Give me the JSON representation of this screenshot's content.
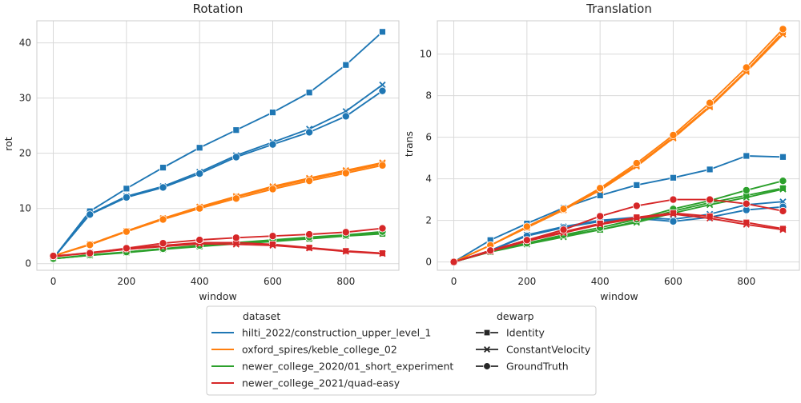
{
  "chart_data": [
    {
      "type": "line",
      "title": "Rotation",
      "xlabel": "window",
      "ylabel": "rot",
      "xlim": [
        -45,
        945
      ],
      "ylim": [
        -1.2,
        44
      ],
      "xticks": [
        0,
        200,
        400,
        600,
        800
      ],
      "yticks": [
        0,
        10,
        20,
        30,
        40
      ],
      "grid": true,
      "series": [
        {
          "dataset": "hilti_2022/construction_upper_level_1",
          "dewarp": "Identity",
          "color": "#1f77b4",
          "marker": "square",
          "x": [
            0,
            100,
            200,
            300,
            400,
            500,
            600,
            700,
            800,
            900
          ],
          "y": [
            1.0,
            9.5,
            13.6,
            17.4,
            21.0,
            24.2,
            27.4,
            31.0,
            36.0,
            42.0
          ]
        },
        {
          "dataset": "hilti_2022/construction_upper_level_1",
          "dewarp": "ConstantVelocity",
          "color": "#1f77b4",
          "marker": "x",
          "x": [
            0,
            100,
            200,
            300,
            400,
            500,
            600,
            700,
            800,
            900
          ],
          "y": [
            1.0,
            9.0,
            12.2,
            14.0,
            16.6,
            19.6,
            22.0,
            24.4,
            27.6,
            32.4
          ]
        },
        {
          "dataset": "hilti_2022/construction_upper_level_1",
          "dewarp": "GroundTruth",
          "color": "#1f77b4",
          "marker": "circle",
          "x": [
            0,
            100,
            200,
            300,
            400,
            500,
            600,
            700,
            800,
            900
          ],
          "y": [
            1.0,
            8.9,
            12.0,
            13.8,
            16.3,
            19.3,
            21.6,
            23.8,
            26.7,
            31.3
          ]
        },
        {
          "dataset": "oxford_spires/keble_college_02",
          "dewarp": "Identity",
          "color": "#ff7f0e",
          "marker": "square",
          "x": [
            0,
            100,
            200,
            300,
            400,
            500,
            600,
            700,
            800,
            900
          ],
          "y": [
            1.4,
            3.5,
            5.9,
            8.2,
            10.2,
            12.1,
            13.8,
            15.3,
            16.7,
            18.1
          ]
        },
        {
          "dataset": "oxford_spires/keble_college_02",
          "dewarp": "ConstantVelocity",
          "color": "#ff7f0e",
          "marker": "x",
          "x": [
            0,
            100,
            200,
            300,
            400,
            500,
            600,
            700,
            800,
            900
          ],
          "y": [
            1.4,
            3.5,
            5.9,
            8.2,
            10.3,
            12.2,
            14.0,
            15.5,
            16.9,
            18.3
          ]
        },
        {
          "dataset": "oxford_spires/keble_college_02",
          "dewarp": "GroundTruth",
          "color": "#ff7f0e",
          "marker": "circle",
          "x": [
            0,
            100,
            200,
            300,
            400,
            500,
            600,
            700,
            800,
            900
          ],
          "y": [
            1.4,
            3.4,
            5.8,
            8.0,
            10.0,
            11.8,
            13.5,
            15.0,
            16.4,
            17.8
          ]
        },
        {
          "dataset": "newer_college_2020/01_short_experiment",
          "dewarp": "Identity",
          "color": "#2ca02c",
          "marker": "square",
          "x": [
            0,
            100,
            200,
            300,
            400,
            500,
            600,
            700,
            800,
            900
          ],
          "y": [
            0.9,
            1.5,
            2.0,
            2.6,
            3.1,
            3.6,
            4.0,
            4.5,
            5.0,
            5.4
          ]
        },
        {
          "dataset": "newer_college_2020/01_short_experiment",
          "dewarp": "ConstantVelocity",
          "color": "#2ca02c",
          "marker": "x",
          "x": [
            0,
            100,
            200,
            300,
            400,
            500,
            600,
            700,
            800,
            900
          ],
          "y": [
            0.9,
            1.5,
            2.1,
            2.7,
            3.2,
            3.7,
            4.1,
            4.6,
            5.1,
            5.6
          ]
        },
        {
          "dataset": "newer_college_2020/01_short_experiment",
          "dewarp": "GroundTruth",
          "color": "#2ca02c",
          "marker": "circle",
          "x": [
            0,
            100,
            200,
            300,
            400,
            500,
            600,
            700,
            800,
            900
          ],
          "y": [
            0.9,
            1.6,
            2.1,
            2.7,
            3.3,
            3.8,
            4.3,
            4.8,
            5.2,
            5.8
          ]
        },
        {
          "dataset": "newer_college_2021/quad-easy",
          "dewarp": "Identity",
          "color": "#d62728",
          "marker": "square",
          "x": [
            0,
            100,
            200,
            300,
            400,
            500,
            600,
            700,
            800,
            900
          ],
          "y": [
            1.3,
            2.0,
            2.7,
            3.3,
            3.8,
            3.8,
            3.5,
            2.9,
            2.3,
            1.9
          ]
        },
        {
          "dataset": "newer_college_2021/quad-easy",
          "dewarp": "ConstantVelocity",
          "color": "#d62728",
          "marker": "x",
          "x": [
            0,
            100,
            200,
            300,
            400,
            500,
            600,
            700,
            800,
            900
          ],
          "y": [
            1.3,
            1.9,
            2.6,
            3.1,
            3.6,
            3.5,
            3.3,
            2.8,
            2.2,
            1.8
          ]
        },
        {
          "dataset": "newer_college_2021/quad-easy",
          "dewarp": "GroundTruth",
          "color": "#d62728",
          "marker": "circle",
          "x": [
            0,
            100,
            200,
            300,
            400,
            500,
            600,
            700,
            800,
            900
          ],
          "y": [
            1.4,
            1.9,
            2.8,
            3.7,
            4.3,
            4.7,
            5.0,
            5.3,
            5.7,
            6.4
          ]
        }
      ]
    },
    {
      "type": "line",
      "title": "Translation",
      "xlabel": "window",
      "ylabel": "trans",
      "xlim": [
        -45,
        945
      ],
      "ylim": [
        -0.4,
        11.6
      ],
      "xticks": [
        0,
        200,
        400,
        600,
        800
      ],
      "yticks": [
        0,
        2,
        4,
        6,
        8,
        10
      ],
      "grid": true,
      "series": [
        {
          "dataset": "hilti_2022/construction_upper_level_1",
          "dewarp": "Identity",
          "color": "#1f77b4",
          "marker": "square",
          "x": [
            0,
            100,
            200,
            300,
            400,
            500,
            600,
            700,
            800,
            900
          ],
          "y": [
            0,
            1.05,
            1.85,
            2.6,
            3.2,
            3.7,
            4.05,
            4.45,
            5.1,
            5.05
          ]
        },
        {
          "dataset": "hilti_2022/construction_upper_level_1",
          "dewarp": "ConstantVelocity",
          "color": "#1f77b4",
          "marker": "x",
          "x": [
            0,
            100,
            200,
            300,
            400,
            500,
            600,
            700,
            800,
            900
          ],
          "y": [
            0,
            0.55,
            1.3,
            1.7,
            2.0,
            2.15,
            2.05,
            2.3,
            2.75,
            2.9
          ]
        },
        {
          "dataset": "hilti_2022/construction_upper_level_1",
          "dewarp": "GroundTruth",
          "color": "#1f77b4",
          "marker": "circle",
          "x": [
            0,
            100,
            200,
            300,
            400,
            500,
            600,
            700,
            800,
            900
          ],
          "y": [
            0,
            0.55,
            1.25,
            1.65,
            1.95,
            2.1,
            1.95,
            2.15,
            2.5,
            2.65
          ]
        },
        {
          "dataset": "oxford_spires/keble_college_02",
          "dewarp": "Identity",
          "color": "#ff7f0e",
          "marker": "square",
          "x": [
            0,
            100,
            200,
            300,
            400,
            500,
            600,
            700,
            800,
            900
          ],
          "y": [
            0,
            0.8,
            1.65,
            2.5,
            3.5,
            4.65,
            6.0,
            7.5,
            9.2,
            11.05
          ]
        },
        {
          "dataset": "oxford_spires/keble_college_02",
          "dewarp": "ConstantVelocity",
          "color": "#ff7f0e",
          "marker": "x",
          "x": [
            0,
            100,
            200,
            300,
            400,
            500,
            600,
            700,
            800,
            900
          ],
          "y": [
            0,
            0.8,
            1.65,
            2.5,
            3.45,
            4.6,
            5.95,
            7.45,
            9.15,
            10.95
          ]
        },
        {
          "dataset": "oxford_spires/keble_college_02",
          "dewarp": "GroundTruth",
          "color": "#ff7f0e",
          "marker": "circle",
          "x": [
            0,
            100,
            200,
            300,
            400,
            500,
            600,
            700,
            800,
            900
          ],
          "y": [
            0,
            0.8,
            1.7,
            2.55,
            3.55,
            4.75,
            6.1,
            7.65,
            9.35,
            11.2
          ]
        },
        {
          "dataset": "newer_college_2020/01_short_experiment",
          "dewarp": "Identity",
          "color": "#2ca02c",
          "marker": "square",
          "x": [
            0,
            100,
            200,
            300,
            400,
            500,
            600,
            700,
            800,
            900
          ],
          "y": [
            0,
            0.5,
            0.9,
            1.25,
            1.55,
            1.95,
            2.45,
            2.85,
            3.2,
            3.55
          ]
        },
        {
          "dataset": "newer_college_2020/01_short_experiment",
          "dewarp": "ConstantVelocity",
          "color": "#2ca02c",
          "marker": "x",
          "x": [
            0,
            100,
            200,
            300,
            400,
            500,
            600,
            700,
            800,
            900
          ],
          "y": [
            0,
            0.48,
            0.85,
            1.2,
            1.55,
            1.9,
            2.35,
            2.75,
            3.1,
            3.5
          ]
        },
        {
          "dataset": "newer_college_2020/01_short_experiment",
          "dewarp": "GroundTruth",
          "color": "#2ca02c",
          "marker": "circle",
          "x": [
            0,
            100,
            200,
            300,
            400,
            500,
            600,
            700,
            800,
            900
          ],
          "y": [
            0,
            0.5,
            0.9,
            1.3,
            1.65,
            2.05,
            2.55,
            2.95,
            3.45,
            3.9
          ]
        },
        {
          "dataset": "newer_college_2021/quad-easy",
          "dewarp": "Identity",
          "color": "#d62728",
          "marker": "square",
          "x": [
            0,
            100,
            200,
            300,
            400,
            500,
            600,
            700,
            800,
            900
          ],
          "y": [
            0,
            0.55,
            1.05,
            1.45,
            1.85,
            2.15,
            2.35,
            2.2,
            1.9,
            1.6
          ]
        },
        {
          "dataset": "newer_college_2021/quad-easy",
          "dewarp": "ConstantVelocity",
          "color": "#d62728",
          "marker": "x",
          "x": [
            0,
            100,
            200,
            300,
            400,
            500,
            600,
            700,
            800,
            900
          ],
          "y": [
            0,
            0.5,
            1.0,
            1.4,
            1.8,
            2.1,
            2.3,
            2.1,
            1.8,
            1.55
          ]
        },
        {
          "dataset": "newer_college_2021/quad-easy",
          "dewarp": "GroundTruth",
          "color": "#d62728",
          "marker": "circle",
          "x": [
            0,
            100,
            200,
            300,
            400,
            500,
            600,
            700,
            800,
            900
          ],
          "y": [
            0,
            0.55,
            1.05,
            1.55,
            2.2,
            2.7,
            3.0,
            3.0,
            2.8,
            2.45
          ]
        }
      ]
    }
  ],
  "legend": {
    "placement": "bottom-center",
    "dataset_title": "dataset",
    "datasets": [
      {
        "label": "hilti_2022/construction_upper_level_1",
        "color": "#1f77b4"
      },
      {
        "label": "oxford_spires/keble_college_02",
        "color": "#ff7f0e"
      },
      {
        "label": "newer_college_2020/01_short_experiment",
        "color": "#2ca02c"
      },
      {
        "label": "newer_college_2021/quad-easy",
        "color": "#d62728"
      }
    ],
    "dewarp_title": "dewarp",
    "dewarps": [
      {
        "label": "Identity",
        "marker": "square"
      },
      {
        "label": "ConstantVelocity",
        "marker": "x"
      },
      {
        "label": "GroundTruth",
        "marker": "circle"
      }
    ]
  }
}
